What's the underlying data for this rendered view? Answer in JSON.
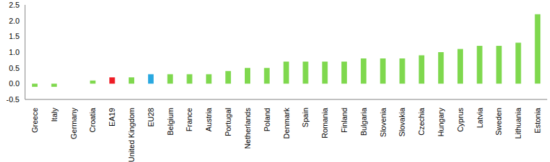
{
  "chart_data": {
    "type": "bar",
    "categories": [
      "Greece",
      "Italy",
      "Germany",
      "Croatia",
      "EA19",
      "United Kingdom",
      "EU28",
      "Belgium",
      "France",
      "Austria",
      "Portugal",
      "Netherlands",
      "Poland",
      "Denmark",
      "Spain",
      "Romania",
      "Finland",
      "Bulgaria",
      "Slovenia",
      "Slovakia",
      "Czechia",
      "Hungary",
      "Cyprus",
      "Latvia",
      "Sweden",
      "Lithuania",
      "Estonia"
    ],
    "values": [
      -0.1,
      -0.1,
      0.0,
      0.1,
      0.2,
      0.2,
      0.3,
      0.3,
      0.3,
      0.3,
      0.4,
      0.5,
      0.5,
      0.7,
      0.7,
      0.7,
      0.7,
      0.8,
      0.8,
      0.8,
      0.9,
      1.0,
      1.1,
      1.2,
      1.2,
      1.3,
      2.2
    ],
    "colors": [
      "#7fd84e",
      "#7fd84e",
      "#7fd84e",
      "#7fd84e",
      "#ee1c25",
      "#7fd84e",
      "#29a8e0",
      "#7fd84e",
      "#7fd84e",
      "#7fd84e",
      "#7fd84e",
      "#7fd84e",
      "#7fd84e",
      "#7fd84e",
      "#7fd84e",
      "#7fd84e",
      "#7fd84e",
      "#7fd84e",
      "#7fd84e",
      "#7fd84e",
      "#7fd84e",
      "#7fd84e",
      "#7fd84e",
      "#7fd84e",
      "#7fd84e",
      "#7fd84e",
      "#7fd84e"
    ],
    "ylim": [
      -0.5,
      2.5
    ],
    "yticks": [
      -0.5,
      {
        "value": 0,
        "label": "0.0"
      },
      0.5,
      {
        "value": 1,
        "label": "1.0"
      },
      1.5,
      {
        "value": 2,
        "label": "2.0"
      },
      2.5
    ],
    "grid": false
  }
}
